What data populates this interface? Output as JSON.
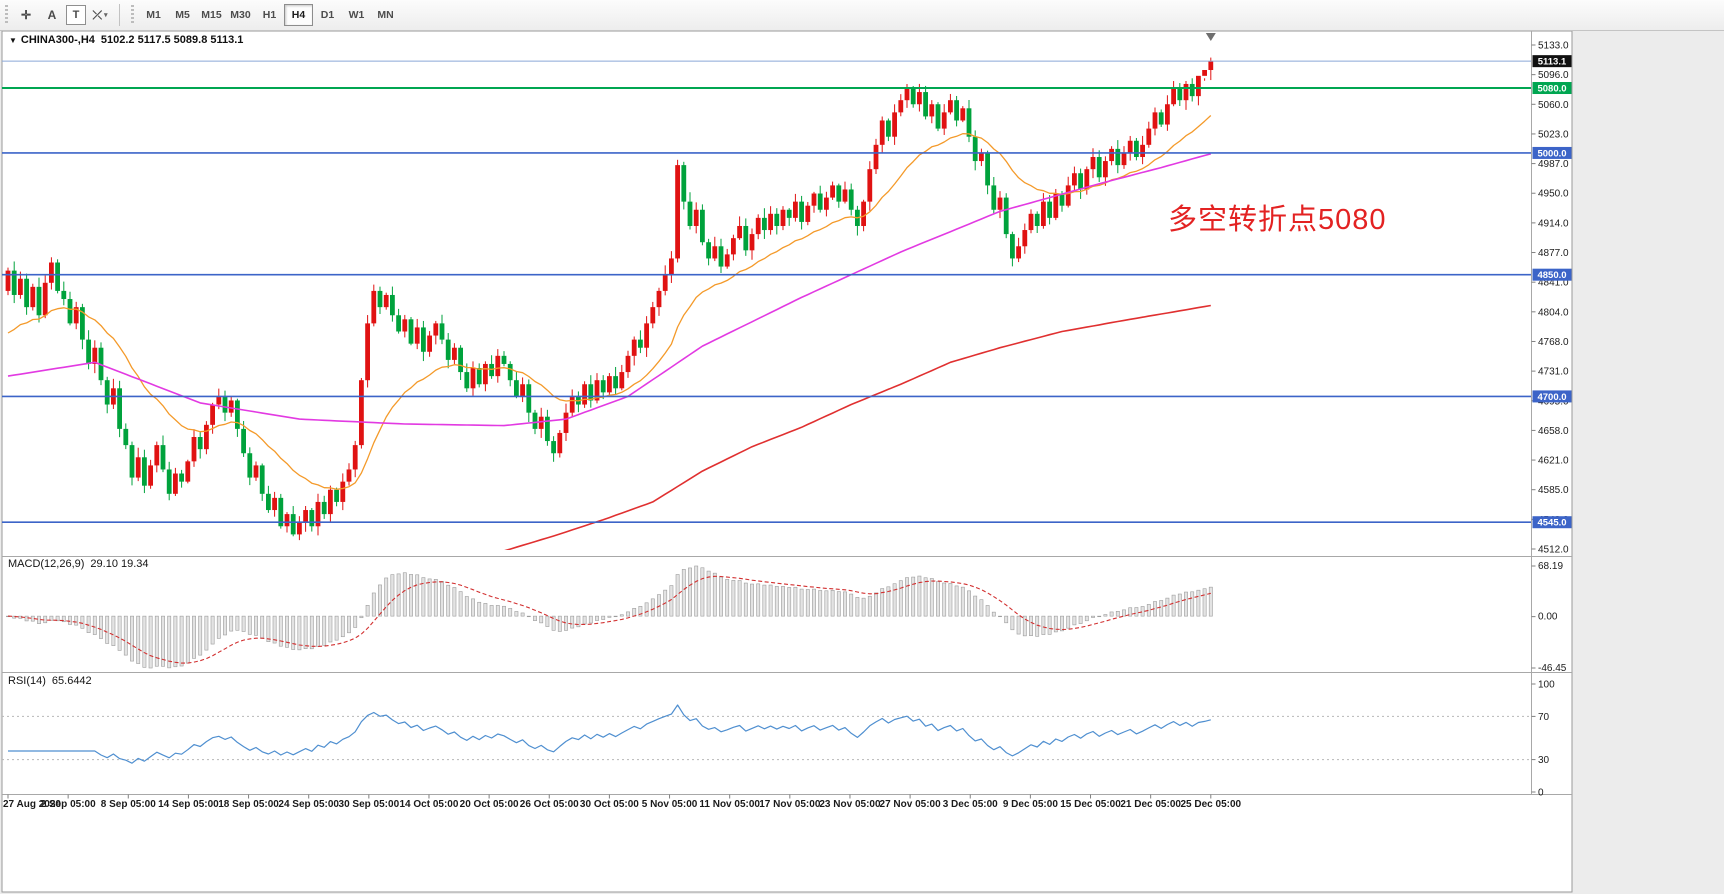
{
  "toolbar": {
    "tool_buttons": [
      {
        "name": "crosshair-tool",
        "glyph": "✛"
      },
      {
        "name": "font-tool",
        "glyph": "A"
      },
      {
        "name": "text-label-tool",
        "glyph": "T",
        "boxed": true
      },
      {
        "name": "objects-tool",
        "glyph": "⤫",
        "caret": "▾"
      }
    ],
    "timeframes": [
      "M1",
      "M5",
      "M15",
      "M30",
      "H1",
      "H4",
      "D1",
      "W1",
      "MN"
    ],
    "active_timeframe": "H4"
  },
  "chart": {
    "symbol_title": "CHINA300-,H4",
    "ohlc_text": "5102.2 5117.5 5089.8 5113.1",
    "annotation": "多空转折点5080",
    "current_price_label": "5113.1",
    "price_ticks": [
      "5133.0",
      "5096.0",
      "5060.0",
      "5023.0",
      "4987.0",
      "4950.0",
      "4914.0",
      "4877.0",
      "4841.0",
      "4804.0",
      "4768.0",
      "4731.0",
      "4695.0",
      "4658.0",
      "4621.0",
      "4585.0",
      "4548.0",
      "4512.0"
    ],
    "time_labels": [
      "27 Aug 2020",
      "2 Sep 05:00",
      "8 Sep 05:00",
      "14 Sep 05:00",
      "18 Sep 05:00",
      "24 Sep 05:00",
      "30 Sep 05:00",
      "14 Oct 05:00",
      "20 Oct 05:00",
      "26 Oct 05:00",
      "30 Oct 05:00",
      "5 Nov 05:00",
      "11 Nov 05:00",
      "17 Nov 05:00",
      "23 Nov 05:00",
      "27 Nov 05:00",
      "3 Dec 05:00",
      "9 Dec 05:00",
      "15 Dec 05:00",
      "21 Dec 05:00",
      "25 Dec 05:00"
    ],
    "levels": [
      {
        "label": "5113.1",
        "price": 5113.1,
        "line_color": "#8aa8d8",
        "tag_color": "#101010",
        "line_width": 1
      },
      {
        "label": "5080.0",
        "price": 5080.0,
        "line_color": "#00a651",
        "tag_color": "#00a651",
        "line_width": 2
      },
      {
        "label": "5000.0",
        "price": 5000.0,
        "line_color": "#3c64c8",
        "tag_color": "#3c64c8",
        "line_width": 1.6
      },
      {
        "label": "4850.0",
        "price": 4850.0,
        "line_color": "#3c64c8",
        "tag_color": "#3c64c8",
        "line_width": 1.6
      },
      {
        "label": "4700.0",
        "price": 4700.0,
        "line_color": "#3c64c8",
        "tag_color": "#3c64c8",
        "line_width": 1.6
      },
      {
        "label": "4545.0",
        "price": 4545.0,
        "line_color": "#3c64c8",
        "tag_color": "#3c64c8",
        "line_width": 1.6
      }
    ]
  },
  "indicators": {
    "macd": {
      "label": "MACD(12,26,9)",
      "values": "29.10 19.34",
      "ticks": [
        "68.19",
        "0.00",
        "-46.45"
      ]
    },
    "rsi": {
      "label": "RSI(14)",
      "value": "65.6442",
      "ticks": [
        "100",
        "70",
        "30",
        "0"
      ]
    }
  },
  "chart_data": {
    "type": "candlestick",
    "symbol": "CHINA300-",
    "timeframe": "H4",
    "y_range": [
      4512.0,
      5133.0
    ],
    "first_open": 4830,
    "closes": [
      4855,
      4825,
      4845,
      4810,
      4835,
      4800,
      4840,
      4865,
      4830,
      4820,
      4790,
      4810,
      4770,
      4740,
      4760,
      4720,
      4690,
      4710,
      4660,
      4640,
      4600,
      4625,
      4590,
      4615,
      4640,
      4610,
      4580,
      4605,
      4595,
      4620,
      4650,
      4635,
      4665,
      4690,
      4700,
      4680,
      4695,
      4660,
      4630,
      4600,
      4615,
      4580,
      4560,
      4575,
      4540,
      4555,
      4530,
      4545,
      4560,
      4540,
      4570,
      4555,
      4585,
      4570,
      4595,
      4610,
      4640,
      4720,
      4790,
      4830,
      4810,
      4825,
      4800,
      4780,
      4795,
      4765,
      4785,
      4755,
      4775,
      4790,
      4770,
      4745,
      4760,
      4730,
      4710,
      4735,
      4715,
      4740,
      4725,
      4750,
      4740,
      4720,
      4700,
      4715,
      4680,
      4660,
      4675,
      4645,
      4630,
      4655,
      4680,
      4700,
      4690,
      4715,
      4695,
      4720,
      4705,
      4725,
      4710,
      4730,
      4750,
      4770,
      4760,
      4790,
      4810,
      4830,
      4850,
      4870,
      4985,
      4940,
      4910,
      4930,
      4890,
      4870,
      4885,
      4860,
      4875,
      4895,
      4910,
      4880,
      4900,
      4920,
      4905,
      4925,
      4910,
      4930,
      4920,
      4940,
      4915,
      4935,
      4950,
      4930,
      4945,
      4960,
      4940,
      4955,
      4930,
      4910,
      4940,
      4980,
      5010,
      5040,
      5020,
      5050,
      5065,
      5080,
      5060,
      5075,
      5045,
      5060,
      5030,
      5050,
      5065,
      5040,
      5055,
      5020,
      4990,
      5000,
      4960,
      4930,
      4945,
      4900,
      4870,
      4885,
      4905,
      4925,
      4910,
      4940,
      4920,
      4950,
      4935,
      4960,
      4975,
      4955,
      4980,
      4995,
      4970,
      4990,
      5005,
      4985,
      5000,
      5015,
      4995,
      5010,
      5030,
      5050,
      5035,
      5060,
      5080,
      5065,
      5085,
      5070,
      5095,
      5102.2,
      5113.1
    ],
    "last_candle": {
      "open": 5102.2,
      "high": 5117.5,
      "low": 5089.8,
      "close": 5113.1
    },
    "up_color": "#e01212",
    "down_color": "#00a23c",
    "horizontal_levels": [
      5113.1,
      5080.0,
      5000.0,
      4850.0,
      4700.0,
      4545.0
    ],
    "moving_averages": [
      {
        "name": "ma-fast",
        "color": "#f49a2a",
        "method": "ema",
        "period": 20,
        "seed": 4770
      },
      {
        "name": "ma-medium",
        "color": "#e23ae2",
        "anchors": [
          [
            0,
            4725
          ],
          [
            14,
            4742
          ],
          [
            31,
            4692
          ],
          [
            47,
            4672
          ],
          [
            64,
            4666
          ],
          [
            80,
            4664
          ],
          [
            90,
            4672
          ],
          [
            100,
            4700
          ],
          [
            112,
            4762
          ],
          [
            128,
            4822
          ],
          [
            144,
            4878
          ],
          [
            160,
            4928
          ],
          [
            176,
            4962
          ],
          [
            186,
            4982
          ],
          [
            194,
            4999
          ]
        ]
      },
      {
        "name": "ma-slow",
        "color": "#e03030",
        "anchors": [
          [
            0,
            4380
          ],
          [
            60,
            4452
          ],
          [
            78,
            4505
          ],
          [
            88,
            4528
          ],
          [
            96,
            4548
          ],
          [
            104,
            4570
          ],
          [
            112,
            4608
          ],
          [
            120,
            4638
          ],
          [
            128,
            4662
          ],
          [
            136,
            4690
          ],
          [
            144,
            4715
          ],
          [
            152,
            4742
          ],
          [
            160,
            4760
          ],
          [
            170,
            4780
          ],
          [
            181,
            4795
          ],
          [
            194,
            4812
          ]
        ]
      }
    ],
    "macd": {
      "fast": 12,
      "slow": 26,
      "signal": 9,
      "current_macd": 29.1,
      "current_signal": 19.34,
      "axis_max": 68.19,
      "axis_min": -46.45
    },
    "rsi": {
      "period": 14,
      "current": 65.6442,
      "levels": [
        70,
        30
      ],
      "range": [
        0,
        100
      ]
    }
  }
}
